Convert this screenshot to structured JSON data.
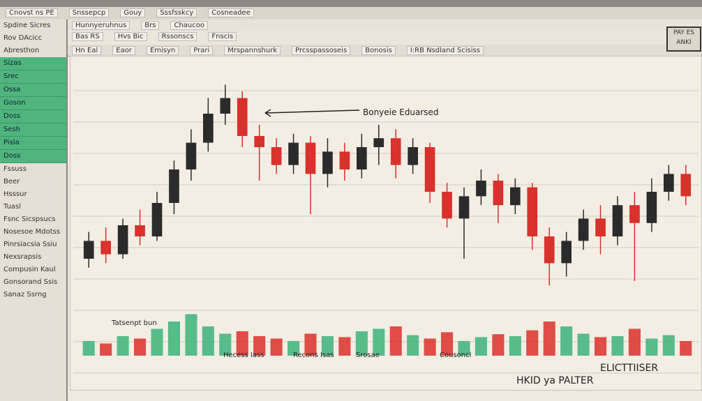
{
  "toolbar": {
    "items": [
      "Cnovst ns PE",
      "Snssepcp",
      "Gouy",
      "Sssfsskcy",
      "Cosneadee"
    ],
    "row2": [
      "Hunnyeruhnus",
      "Brs",
      "Chaucoo"
    ],
    "row3": [
      "Bas RS",
      "Hvs Bic",
      "Rssonscs",
      "Fnscis"
    ],
    "tabs": [
      "Hn Eal",
      "Eaor",
      "Emisyn",
      "Prari",
      "Mrspannshurk",
      "Prcsspassoseis",
      "Bonosis",
      "I:RB Nsdland Scisiss"
    ]
  },
  "badge": [
    "PAY ES",
    "ANKI"
  ],
  "sidebar": {
    "header": [
      "Spdine Sicres",
      "Rov DAcicc",
      "Abresthon"
    ],
    "green_items": [
      "Sizas",
      "Srec",
      "Ossa",
      "Goson",
      "Doss",
      "Sesh",
      "Pisla",
      "Doss"
    ],
    "footer": [
      "Fssuss",
      "Beer",
      "Hsssur",
      "Tuasl",
      "Fsnc Sicspsucs",
      "Nosesoe Mdotss",
      "Pinrsiacsia Ssiu",
      "Nexsrapsis",
      "Compusin Kaul",
      "Gonsorand Ssis",
      "Sanaz Ssrng"
    ]
  },
  "chart_data": {
    "type": "candlestick",
    "annotations": [
      "Bonyeie Eduarsed",
      "Tatsenpt bun",
      "Hecess Iass",
      "Recons Isas",
      "Srosae",
      "Cousoncl",
      "HKID ya PALTER",
      "ELICTTIISER"
    ],
    "open": [
      20,
      28,
      22,
      35,
      30,
      45,
      60,
      72,
      85,
      92,
      75,
      70,
      62,
      72,
      58,
      68,
      60,
      70,
      74,
      62,
      70,
      50,
      38,
      48,
      55,
      44,
      52,
      30,
      18,
      28,
      38,
      30,
      44,
      36,
      50,
      58
    ],
    "close": [
      28,
      22,
      35,
      30,
      45,
      60,
      72,
      85,
      92,
      75,
      70,
      62,
      72,
      58,
      68,
      60,
      70,
      74,
      62,
      70,
      50,
      38,
      48,
      55,
      44,
      52,
      30,
      18,
      28,
      38,
      30,
      44,
      36,
      50,
      58,
      48
    ],
    "high": [
      32,
      34,
      38,
      42,
      50,
      64,
      78,
      92,
      98,
      95,
      80,
      74,
      76,
      75,
      74,
      72,
      76,
      80,
      78,
      74,
      72,
      54,
      52,
      60,
      58,
      56,
      54,
      34,
      32,
      42,
      44,
      48,
      50,
      56,
      62,
      62
    ],
    "low": [
      16,
      18,
      20,
      26,
      28,
      40,
      55,
      68,
      80,
      70,
      55,
      58,
      58,
      40,
      52,
      55,
      56,
      62,
      56,
      58,
      45,
      34,
      20,
      44,
      36,
      40,
      24,
      8,
      12,
      24,
      22,
      26,
      10,
      32,
      46,
      44
    ],
    "volume": [
      30,
      25,
      40,
      35,
      55,
      70,
      85,
      60,
      45,
      50,
      40,
      35,
      30,
      45,
      40,
      38,
      50,
      55,
      60,
      42,
      35,
      48,
      30,
      38,
      44,
      40,
      52,
      70,
      60,
      45,
      38,
      40,
      55,
      35,
      42,
      30
    ],
    "ylim": [
      0,
      100
    ],
    "volume_ylim": [
      0,
      100
    ],
    "up_color": "#2b2b2b",
    "down_color": "#d9312b",
    "volume_up_color": "#3cb37a",
    "volume_down_color": "#d9312b"
  }
}
